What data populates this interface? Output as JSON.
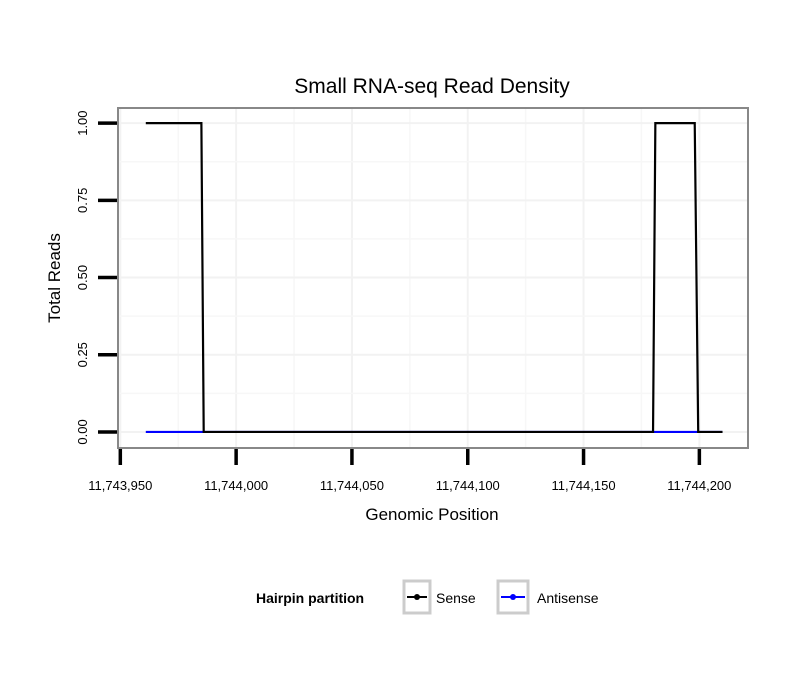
{
  "chart_data": {
    "type": "line",
    "title": "Small RNA-seq Read Density",
    "xlabel": "Genomic Position",
    "ylabel": "Total Reads",
    "xlim": [
      11743949,
      11744221
    ],
    "ylim": [
      -0.052,
      1.049
    ],
    "x_ticks": [
      11743950,
      11744000,
      11744050,
      11744100,
      11744150,
      11744200
    ],
    "x_tick_labels": [
      "11,743,950",
      "11,744,000",
      "11,744,050",
      "11,744,100",
      "11,744,150",
      "11,744,200"
    ],
    "y_ticks": [
      0,
      0.25,
      0.5,
      0.75,
      1.0
    ],
    "y_tick_labels": [
      "0.00",
      "0.25",
      "0.50",
      "0.75",
      "1.00"
    ],
    "grid": true,
    "legend": {
      "title": "Hairpin partition",
      "placement": "bottom"
    },
    "series": [
      {
        "name": "Antisense",
        "color": "#0000ff",
        "x": [
          11743961,
          11744210
        ],
        "y": [
          0,
          0
        ]
      },
      {
        "name": "Sense",
        "color": "#000000",
        "x": [
          11743961,
          11743985,
          11743986,
          11744180,
          11744181,
          11744198,
          11744199.5,
          11744210
        ],
        "y": [
          1,
          1,
          0,
          0,
          1,
          1,
          0,
          0
        ]
      }
    ]
  }
}
